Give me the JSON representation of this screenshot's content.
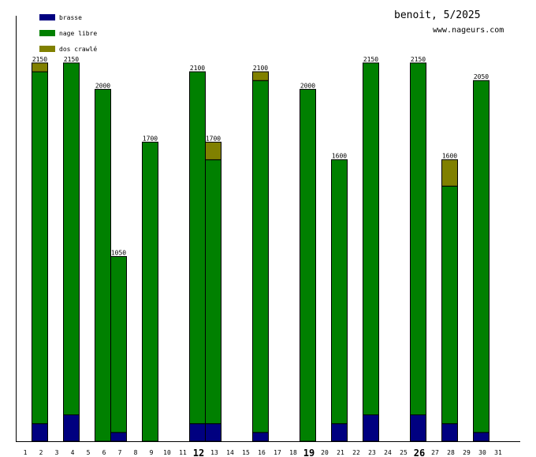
{
  "header": {
    "title": "benoit, 5/2025",
    "site": "www.nageurs.com"
  },
  "colors": {
    "brasse": "#000080",
    "nage_libre": "#008000",
    "dos_crawle": "#808000"
  },
  "chart_data": {
    "type": "bar",
    "stacked": true,
    "title": "benoit, 5/2025",
    "xlabel": "",
    "ylabel": "",
    "ylim": [
      0,
      2200
    ],
    "grid": false,
    "legend_position": "top-left",
    "categories": [
      "1",
      "2",
      "3",
      "4",
      "5",
      "6",
      "7",
      "8",
      "9",
      "10",
      "11",
      "12",
      "13",
      "14",
      "15",
      "16",
      "17",
      "18",
      "19",
      "20",
      "21",
      "22",
      "23",
      "24",
      "25",
      "26",
      "27",
      "28",
      "29",
      "30",
      "31"
    ],
    "bold_categories": [
      "12",
      "19",
      "26"
    ],
    "series": [
      {
        "name": "brasse",
        "color": "#000080",
        "values": [
          0,
          100,
          0,
          150,
          0,
          0,
          50,
          0,
          0,
          0,
          0,
          100,
          100,
          0,
          0,
          50,
          0,
          0,
          0,
          0,
          100,
          0,
          150,
          0,
          0,
          150,
          0,
          100,
          0,
          50,
          0
        ]
      },
      {
        "name": "nage libre",
        "color": "#008000",
        "values": [
          0,
          2000,
          0,
          2000,
          0,
          2000,
          1000,
          0,
          1700,
          0,
          0,
          2000,
          1500,
          0,
          0,
          2000,
          0,
          0,
          2000,
          0,
          1500,
          0,
          2000,
          0,
          0,
          2000,
          0,
          1350,
          0,
          2000,
          0
        ]
      },
      {
        "name": "dos crawlé",
        "color": "#808000",
        "values": [
          0,
          50,
          0,
          0,
          0,
          0,
          0,
          0,
          0,
          0,
          0,
          0,
          100,
          0,
          0,
          50,
          0,
          0,
          0,
          0,
          0,
          0,
          0,
          0,
          0,
          0,
          0,
          150,
          0,
          0,
          0
        ]
      }
    ],
    "totals": [
      {
        "day": "2",
        "label": "2150"
      },
      {
        "day": "4",
        "label": "2150"
      },
      {
        "day": "6",
        "label": "2000"
      },
      {
        "day": "7",
        "label": "1050"
      },
      {
        "day": "9",
        "label": "1700"
      },
      {
        "day": "12",
        "label": "2100"
      },
      {
        "day": "13",
        "label": "1700"
      },
      {
        "day": "16",
        "label": "2100"
      },
      {
        "day": "19",
        "label": "2000"
      },
      {
        "day": "21",
        "label": "1600"
      },
      {
        "day": "23",
        "label": "2150"
      },
      {
        "day": "26",
        "label": "2150"
      },
      {
        "day": "28",
        "label": "1600"
      },
      {
        "day": "30",
        "label": "2050"
      }
    ]
  }
}
